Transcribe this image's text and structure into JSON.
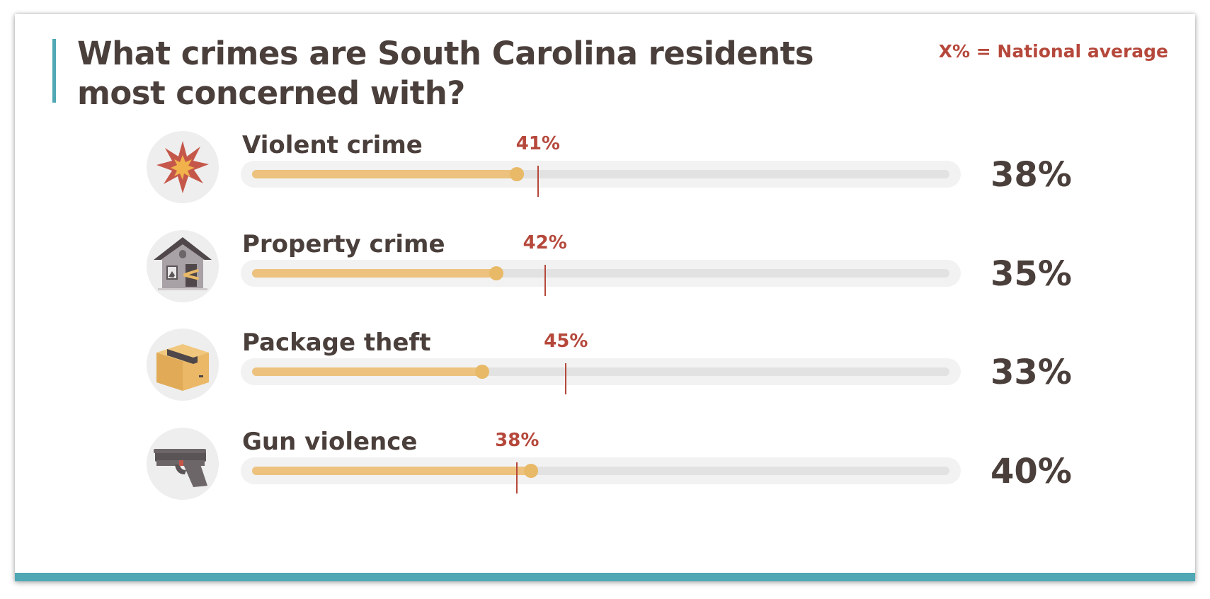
{
  "title_line1": "What crimes are South Carolina residents",
  "title_line2": "most concerned with?",
  "legend": "X% = National average",
  "chart_data": {
    "type": "bar",
    "orientation": "horizontal",
    "xlim": [
      0,
      100
    ],
    "categories": [
      "Violent crime",
      "Property crime",
      "Package theft",
      "Gun violence"
    ],
    "series": [
      {
        "name": "",
        "values": [
          38,
          35,
          33,
          40
        ],
        "labels": [
          "38%",
          "35%",
          "33%",
          "40%"
        ]
      },
      {
        "name": "National average",
        "values": [
          41,
          42,
          45,
          38
        ],
        "labels": [
          "41%",
          "42%",
          "45%",
          "38%"
        ]
      }
    ],
    "icons": [
      "explosion-icon",
      "broken-house-icon",
      "package-box-icon",
      "handgun-icon"
    ]
  },
  "colors": {
    "accent": "#4fa8b4",
    "bar_fill": "#ecc27e",
    "national_marker": "#b5483b",
    "text": "#4a3f3b"
  }
}
